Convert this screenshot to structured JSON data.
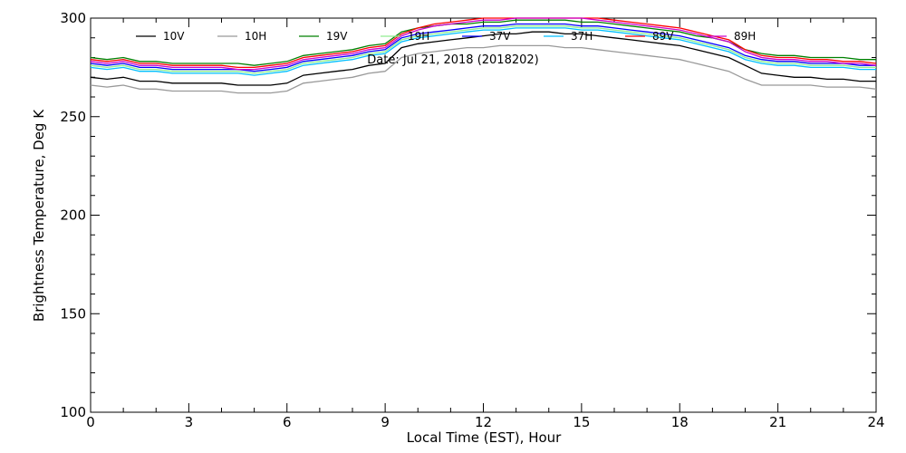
{
  "chart_data": {
    "type": "line",
    "xlabel": "Local Time (EST), Hour",
    "ylabel": "Brightness Temperature, Deg K",
    "annotation": "Date: Jul 21, 2018 (2018202)",
    "xlim": [
      0,
      24
    ],
    "ylim": [
      100,
      300
    ],
    "xticks": [
      0,
      3,
      6,
      9,
      12,
      15,
      18,
      21,
      24
    ],
    "yticks": [
      100,
      150,
      200,
      250,
      300
    ],
    "grid": false,
    "legend_position": "top-left-inside",
    "x": [
      0,
      0.5,
      1,
      1.5,
      2,
      2.5,
      3,
      3.5,
      4,
      4.5,
      5,
      5.5,
      6,
      6.5,
      7,
      7.5,
      8,
      8.5,
      9,
      9.5,
      10,
      10.5,
      11,
      11.5,
      12,
      12.5,
      13,
      13.5,
      14,
      14.5,
      15,
      15.5,
      16,
      16.5,
      17,
      17.5,
      18,
      18.5,
      19,
      19.5,
      20,
      20.5,
      21,
      21.5,
      22,
      22.5,
      23,
      23.5,
      24
    ],
    "series": [
      {
        "name": "10V",
        "color": "#000000",
        "values": [
          270,
          269,
          270,
          268,
          268,
          267,
          267,
          267,
          267,
          266,
          266,
          266,
          267,
          271,
          272,
          273,
          274,
          276,
          277,
          285,
          287,
          288,
          289,
          290,
          291,
          292,
          292,
          293,
          293,
          292,
          292,
          291,
          290,
          289,
          288,
          287,
          286,
          284,
          282,
          280,
          276,
          272,
          271,
          270,
          270,
          269,
          269,
          268,
          268
        ]
      },
      {
        "name": "10H",
        "color": "#999999",
        "values": [
          266,
          265,
          266,
          264,
          264,
          263,
          263,
          263,
          263,
          262,
          262,
          262,
          263,
          267,
          268,
          269,
          270,
          272,
          273,
          280,
          282,
          283,
          284,
          285,
          285,
          286,
          286,
          286,
          286,
          285,
          285,
          284,
          283,
          282,
          281,
          280,
          279,
          277,
          275,
          273,
          269,
          266,
          266,
          266,
          266,
          265,
          265,
          265,
          264
        ]
      },
      {
        "name": "19V",
        "color": "#008000",
        "values": [
          280,
          279,
          280,
          278,
          278,
          277,
          277,
          277,
          277,
          277,
          276,
          277,
          278,
          281,
          282,
          283,
          284,
          286,
          287,
          293,
          295,
          296,
          297,
          297,
          298,
          298,
          299,
          299,
          299,
          299,
          298,
          298,
          297,
          296,
          295,
          294,
          293,
          291,
          290,
          288,
          284,
          282,
          281,
          281,
          280,
          280,
          280,
          279,
          279
        ]
      },
      {
        "name": "19H",
        "color": "#90ee90",
        "values": [
          276,
          275,
          276,
          274,
          274,
          273,
          273,
          273,
          273,
          273,
          272,
          273,
          274,
          277,
          278,
          279,
          280,
          282,
          283,
          289,
          291,
          292,
          293,
          294,
          295,
          295,
          296,
          296,
          296,
          296,
          295,
          295,
          294,
          293,
          292,
          291,
          290,
          288,
          286,
          284,
          280,
          278,
          277,
          277,
          276,
          276,
          276,
          275,
          275
        ]
      },
      {
        "name": "37V",
        "color": "#0000ff",
        "values": [
          277,
          276,
          277,
          275,
          275,
          274,
          274,
          274,
          274,
          274,
          273,
          274,
          275,
          278,
          279,
          280,
          281,
          283,
          284,
          290,
          292,
          293,
          294,
          295,
          296,
          296,
          297,
          297,
          297,
          297,
          296,
          296,
          295,
          294,
          293,
          292,
          291,
          289,
          287,
          285,
          281,
          279,
          278,
          278,
          277,
          277,
          277,
          276,
          276
        ]
      },
      {
        "name": "37H",
        "color": "#00bfff",
        "values": [
          275,
          274,
          275,
          273,
          273,
          272,
          272,
          272,
          272,
          272,
          271,
          272,
          273,
          276,
          277,
          278,
          279,
          281,
          282,
          288,
          290,
          291,
          292,
          293,
          294,
          294,
          295,
          295,
          295,
          295,
          294,
          294,
          293,
          292,
          291,
          290,
          289,
          287,
          285,
          283,
          279,
          277,
          276,
          276,
          275,
          275,
          275,
          274,
          274
        ]
      },
      {
        "name": "89V",
        "color": "#ff0000",
        "values": [
          279,
          278,
          279,
          277,
          277,
          276,
          276,
          276,
          276,
          275,
          275,
          276,
          277,
          280,
          281,
          282,
          283,
          285,
          286,
          292,
          295,
          297,
          298,
          299,
          300,
          300,
          300,
          300,
          300,
          300,
          300,
          300,
          299,
          298,
          297,
          296,
          295,
          293,
          291,
          289,
          284,
          281,
          280,
          280,
          279,
          279,
          278,
          278,
          277
        ]
      },
      {
        "name": "89H",
        "color": "#cc00cc",
        "values": [
          278,
          277,
          278,
          276,
          276,
          275,
          275,
          275,
          275,
          274,
          274,
          275,
          276,
          279,
          280,
          281,
          282,
          284,
          285,
          291,
          294,
          296,
          297,
          298,
          299,
          299,
          300,
          300,
          300,
          300,
          300,
          299,
          298,
          297,
          296,
          295,
          294,
          292,
          290,
          288,
          283,
          280,
          279,
          279,
          278,
          278,
          277,
          277,
          276
        ]
      }
    ]
  }
}
